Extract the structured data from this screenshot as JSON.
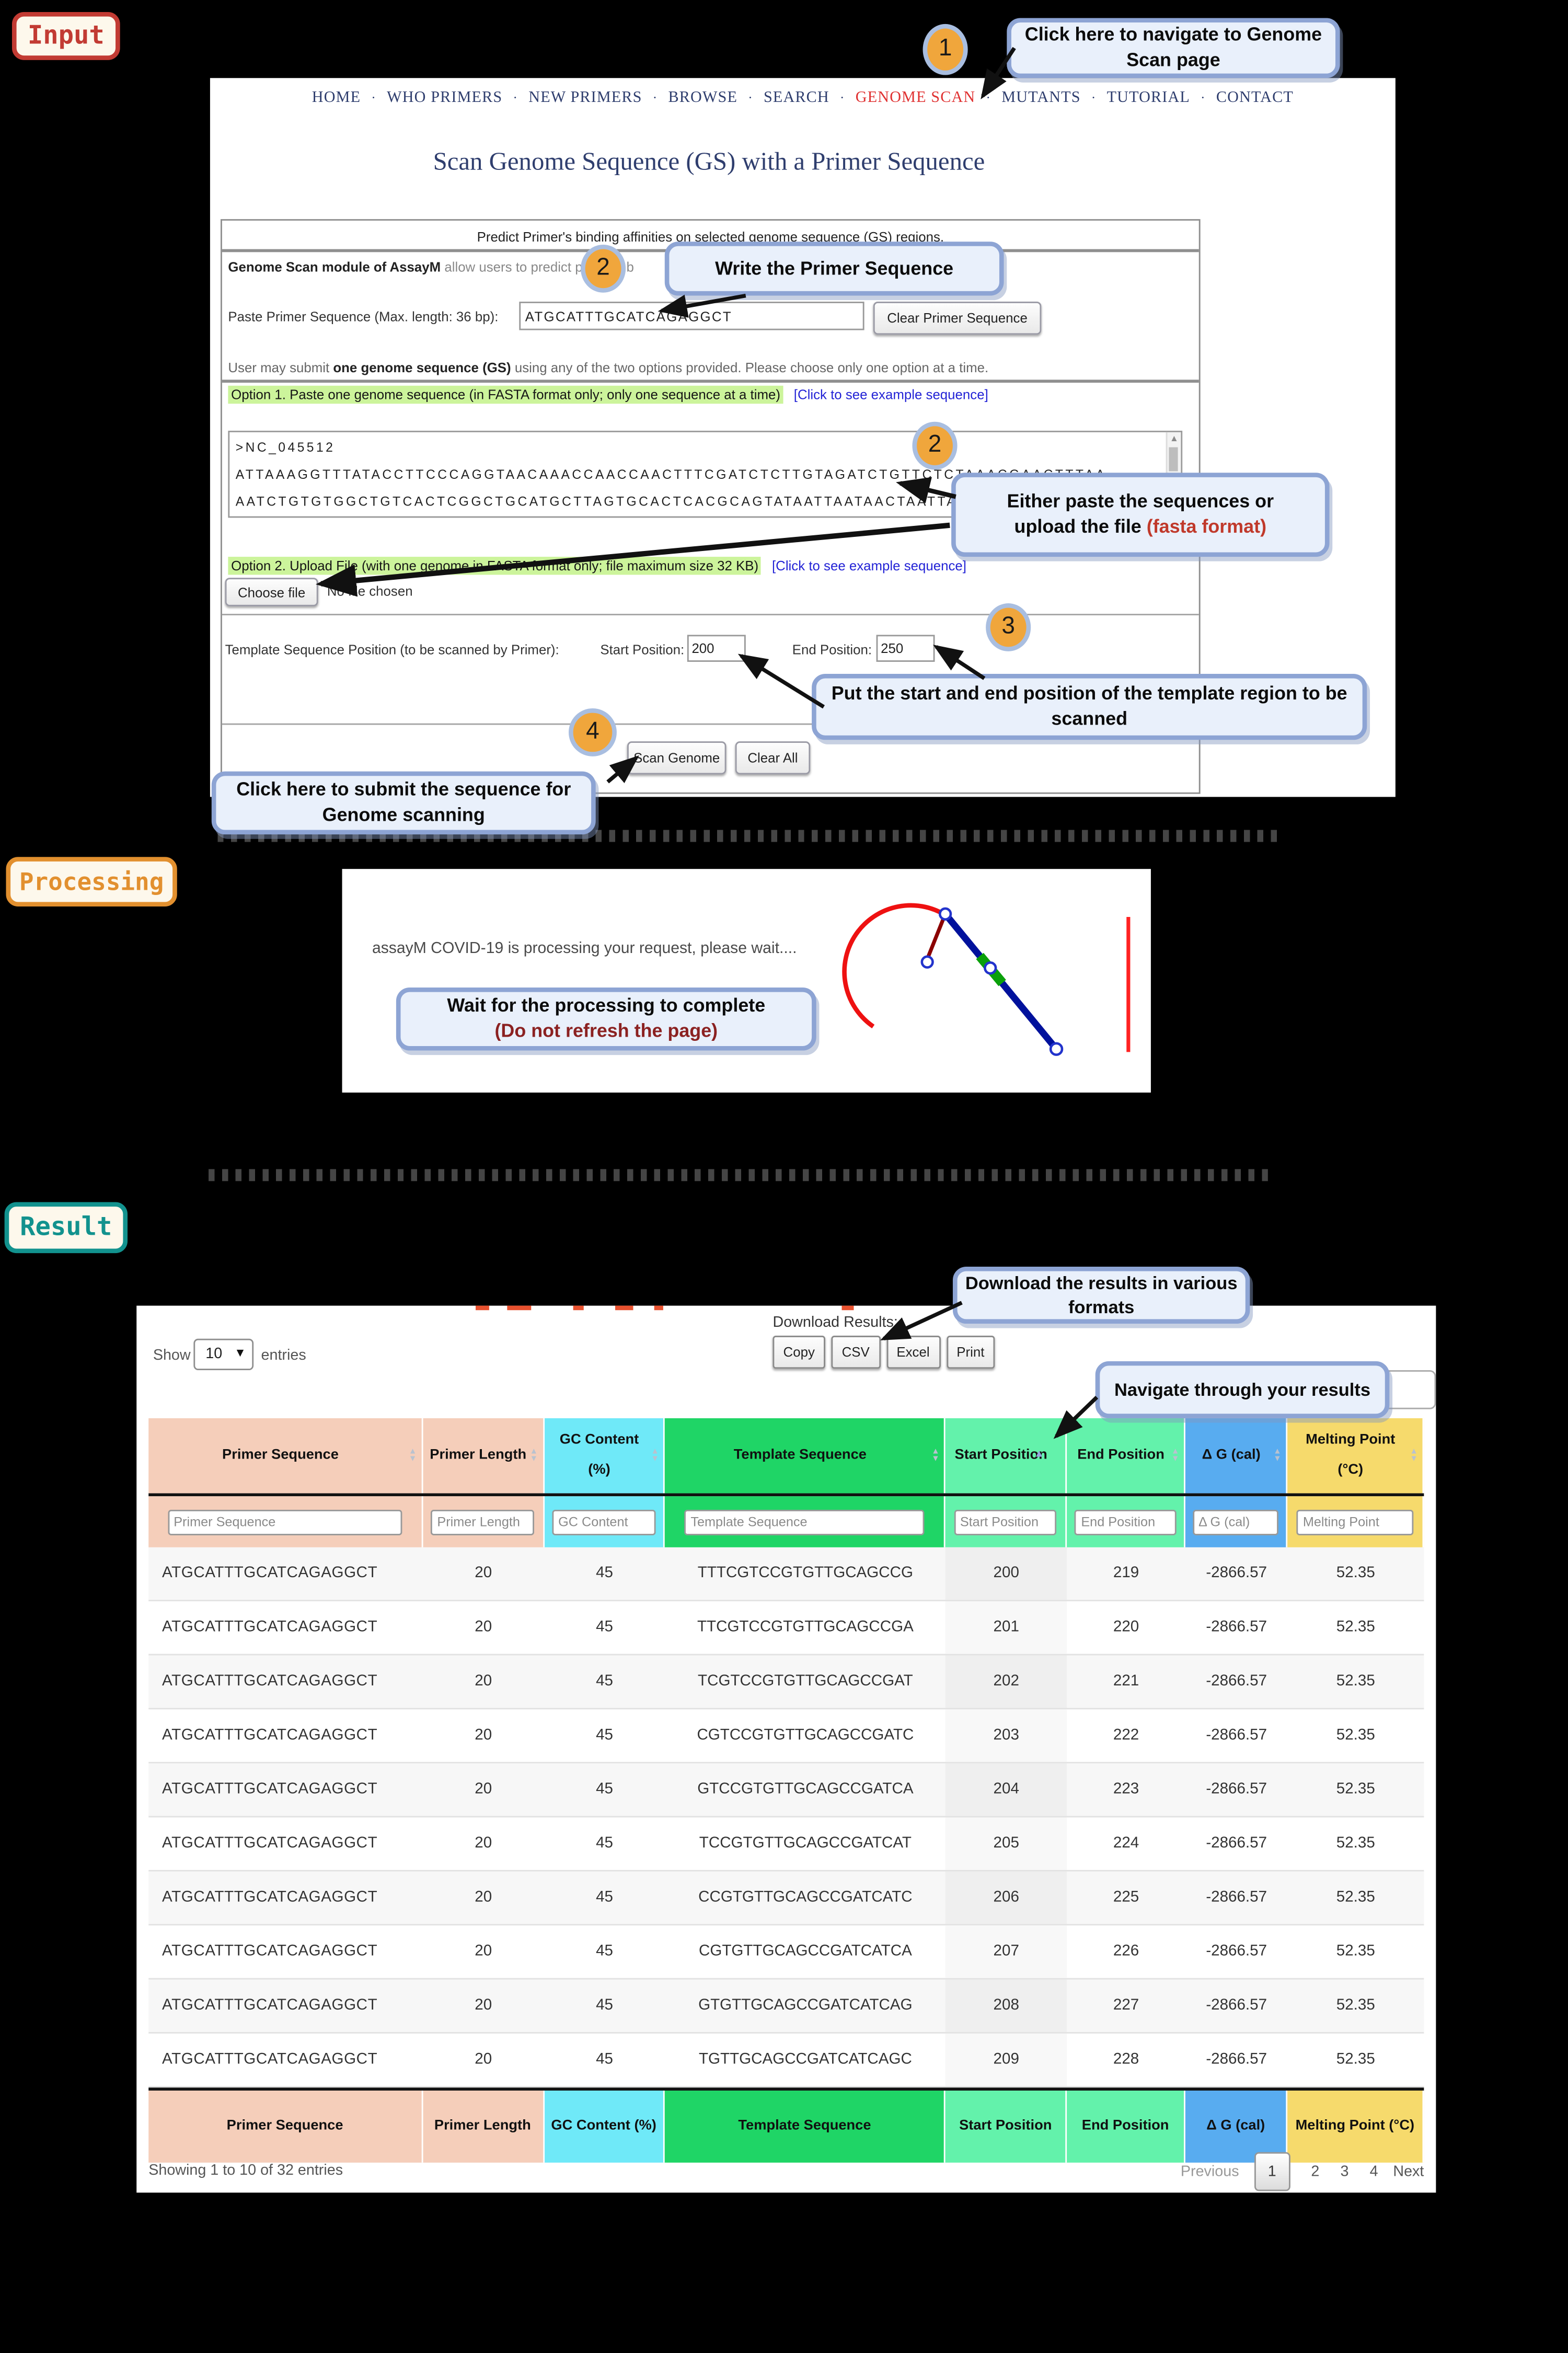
{
  "colors": {
    "accent_red": "#c23b33",
    "accent_orange": "#e2902f",
    "accent_teal": "#12928e",
    "nav_active_red": "#e03131",
    "link_blue": "#2323d6",
    "highlight_green": "#ccf49b",
    "callout_bg": "#e9f0fb",
    "callout_border": "#8da4d4",
    "badge_orange": "#f0a63c"
  },
  "section_labels": {
    "input": "Input",
    "processing": "Processing",
    "result": "Result"
  },
  "nav": {
    "items": [
      "HOME",
      "WHO PRIMERS",
      "NEW PRIMERS",
      "BROWSE",
      "SEARCH",
      "GENOME SCAN",
      "MUTANTS",
      "TUTORIAL",
      "CONTACT"
    ],
    "active_index": 5,
    "separator": "·"
  },
  "page_title": "Scan Genome Sequence (GS) with a Primer Sequence",
  "form": {
    "intro": "Predict Primer's binding affinities on selected genome sequence (GS) regions.",
    "module_bold": "Genome Scan module of AssayM",
    "module_rest": " allow users to predict primer's b",
    "primer_label": "Paste Primer Sequence (Max. length: 36 bp):",
    "primer_value": "ATGCATTTGCATCAGAGGCT",
    "clear_primer_label": "Clear Primer Sequence",
    "note_pre": "User may submit ",
    "note_bold": "one genome sequence (GS)",
    "note_post": " using any of the two options provided. Please choose only one option at a time.",
    "option1_label": "Option 1. Paste one genome sequence (in FASTA format only; only one sequence at a time)",
    "option1_link": "[Click to see example sequence]",
    "fasta_lines": [
      ">NC_045512",
      "ATTAAAGGTTTATACCTTCCCAGGTAACAAACCAACCAACTTTCGATCTCTTGTAGATCTGTTCTCTAAACGAACTTTAA",
      "AATCTGTGTGGCTGTCACTCGGCTGCATGCTTAGTGCACTCACGCAGTATAATTAATAACTAATTACTGTCGTTGACAGG"
    ],
    "option2_label": "Option 2. Upload File (with one genome in FASTA format only; file maximum size 32 KB)",
    "option2_link": "[Click to see example sequence]",
    "choose_file_label": "Choose file",
    "no_file_text": "No file chosen",
    "template_label": "Template Sequence Position (to be scanned by Primer):",
    "start_label": "Start Position:",
    "start_value": "200",
    "end_label": "End Position:",
    "end_value": "250",
    "scan_label": "Scan Genome",
    "clear_all_label": "Clear All"
  },
  "annotations": {
    "step1": {
      "num": "1",
      "text": "Click here to navigate to Genome Scan page"
    },
    "step2a": {
      "num": "2",
      "text": "Write the Primer Sequence"
    },
    "step2b": {
      "num": "2",
      "line1": "Either paste the sequences or",
      "line2": "upload the file ",
      "line2_red": "(fasta format)"
    },
    "step3": {
      "num": "3",
      "text": "Put the start and end position of the template region to be scanned"
    },
    "step4": {
      "num": "4",
      "text": "Click here to submit the sequence for Genome scanning"
    },
    "wait": {
      "line1": "Wait for the processing to complete",
      "line2": "(Do not refresh the page)"
    },
    "download": {
      "text": "Download the results in various formats"
    },
    "navigate": {
      "text": "Navigate through your results"
    }
  },
  "processing": {
    "message": "assayM COVID-19 is processing your request, please wait...."
  },
  "result": {
    "show_label": "Show",
    "entries_value": "10",
    "entries_label": "entries",
    "download_label": "Download Results:",
    "download_buttons": [
      "Copy",
      "CSV",
      "Excel",
      "Print"
    ],
    "table": {
      "columns": [
        {
          "label": "Primer Sequence",
          "filter": "Primer Sequence",
          "color": "#f5ceba",
          "width": 21.5,
          "sorted": false
        },
        {
          "label": "Primer Length",
          "filter": "Primer Length",
          "color": "#f5ceba",
          "width": 9.5,
          "sorted": false
        },
        {
          "label": "GC Content (%)",
          "filter": "GC Content",
          "color": "#6fe9f8",
          "width": 9.5,
          "sorted": false
        },
        {
          "label": "Template Sequence",
          "filter": "Template Sequence",
          "color": "#1fd566",
          "width": 22,
          "sorted": false
        },
        {
          "label": "Start Position",
          "filter": "Start Position",
          "color": "#63f2ab",
          "width": 9.5,
          "sorted": true
        },
        {
          "label": "End Position",
          "filter": "End Position",
          "color": "#63f2ab",
          "width": 9.3,
          "sorted": false
        },
        {
          "label": "Δ G (cal)",
          "filter": "Δ G (cal)",
          "color": "#58acf0",
          "width": 8,
          "sorted": false
        },
        {
          "label": "Melting Point (°C)",
          "filter": "Melting Point",
          "color": "#f6da6c",
          "width": 10.7,
          "sorted": false
        }
      ],
      "rows": [
        [
          "ATGCATTTGCATCAGAGGCT",
          "20",
          "45",
          "TTTCGTCCGTGTTGCAGCCG",
          "200",
          "219",
          "-2866.57",
          "52.35"
        ],
        [
          "ATGCATTTGCATCAGAGGCT",
          "20",
          "45",
          "TTCGTCCGTGTTGCAGCCGA",
          "201",
          "220",
          "-2866.57",
          "52.35"
        ],
        [
          "ATGCATTTGCATCAGAGGCT",
          "20",
          "45",
          "TCGTCCGTGTTGCAGCCGAT",
          "202",
          "221",
          "-2866.57",
          "52.35"
        ],
        [
          "ATGCATTTGCATCAGAGGCT",
          "20",
          "45",
          "CGTCCGTGTTGCAGCCGATC",
          "203",
          "222",
          "-2866.57",
          "52.35"
        ],
        [
          "ATGCATTTGCATCAGAGGCT",
          "20",
          "45",
          "GTCCGTGTTGCAGCCGATCA",
          "204",
          "223",
          "-2866.57",
          "52.35"
        ],
        [
          "ATGCATTTGCATCAGAGGCT",
          "20",
          "45",
          "TCCGTGTTGCAGCCGATCAT",
          "205",
          "224",
          "-2866.57",
          "52.35"
        ],
        [
          "ATGCATTTGCATCAGAGGCT",
          "20",
          "45",
          "CCGTGTTGCAGCCGATCATC",
          "206",
          "225",
          "-2866.57",
          "52.35"
        ],
        [
          "ATGCATTTGCATCAGAGGCT",
          "20",
          "45",
          "CGTGTTGCAGCCGATCATCA",
          "207",
          "226",
          "-2866.57",
          "52.35"
        ],
        [
          "ATGCATTTGCATCAGAGGCT",
          "20",
          "45",
          "GTGTTGCAGCCGATCATCAG",
          "208",
          "227",
          "-2866.57",
          "52.35"
        ],
        [
          "ATGCATTTGCATCAGAGGCT",
          "20",
          "45",
          "TGTTGCAGCCGATCATCAGC",
          "209",
          "228",
          "-2866.57",
          "52.35"
        ]
      ]
    },
    "info_text": "Showing 1 to 10 of 32 entries",
    "pagination": {
      "prev": "Previous",
      "pages": [
        "1",
        "2",
        "3",
        "4"
      ],
      "current": "1",
      "next": "Next"
    }
  }
}
